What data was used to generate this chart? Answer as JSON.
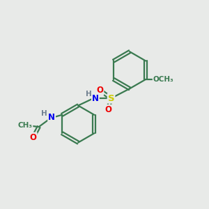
{
  "bg_color": "#e8eae8",
  "bond_color": "#3a7a50",
  "bond_width": 1.6,
  "atom_colors": {
    "N": "#0000ee",
    "O": "#ee0000",
    "S": "#cccc00",
    "H": "#708090",
    "C": "#3a7a50"
  },
  "font_size": 8.5
}
